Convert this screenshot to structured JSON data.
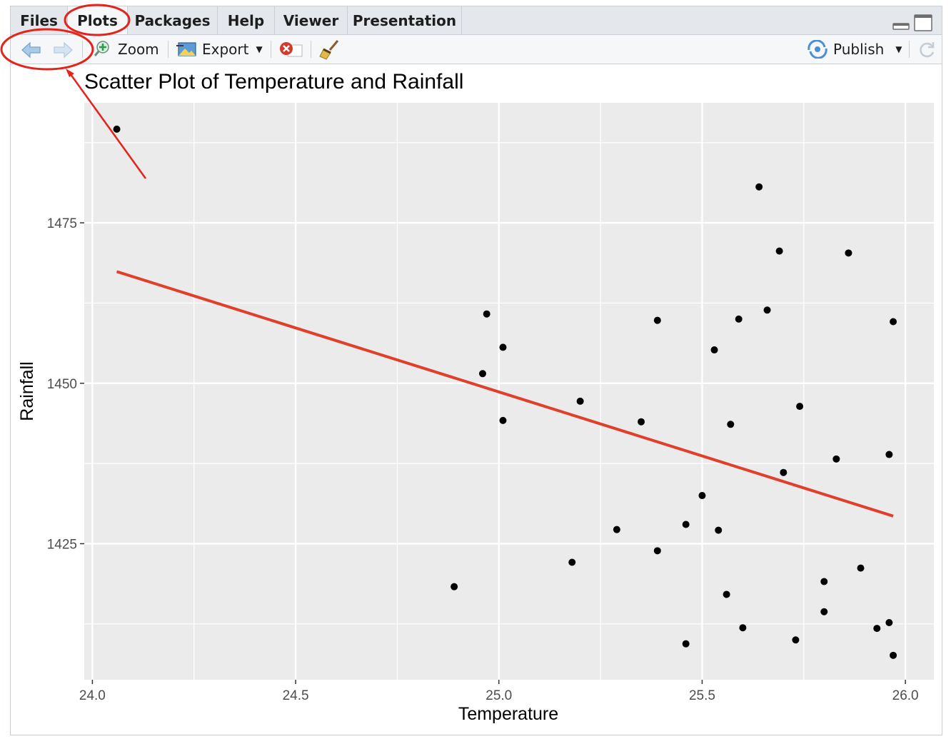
{
  "tabs": [
    {
      "label": "Files",
      "active": false
    },
    {
      "label": "Plots",
      "active": true
    },
    {
      "label": "Packages",
      "active": false
    },
    {
      "label": "Help",
      "active": false
    },
    {
      "label": "Viewer",
      "active": false
    },
    {
      "label": "Presentation",
      "active": false
    }
  ],
  "toolbar": {
    "zoom_label": "Zoom",
    "export_label": "Export",
    "publish_label": "Publish"
  },
  "colors": {
    "panel_bg": "#ebebeb",
    "grid": "#ffffff",
    "point": "#000000",
    "trend_line": "#e0402a",
    "annotation": "#e3241b"
  },
  "chart_data": {
    "type": "scatter",
    "title": "Scatter Plot of Temperature and Rainfall",
    "xlabel": "Temperature",
    "ylabel": "Rainfall",
    "xlim": [
      23.98,
      26.07
    ],
    "ylim": [
      1403.8,
      1493.7
    ],
    "x_ticks": [
      24.0,
      24.5,
      25.0,
      25.5,
      26.0
    ],
    "x_tick_labels": [
      "24.0",
      "24.5",
      "25.0",
      "25.5",
      "26.0"
    ],
    "y_ticks": [
      1425,
      1450,
      1475
    ],
    "y_tick_labels": [
      "1425",
      "1450",
      "1475"
    ],
    "grid": true,
    "points": [
      {
        "x": 24.06,
        "y": 1489.6
      },
      {
        "x": 24.89,
        "y": 1418.3
      },
      {
        "x": 24.96,
        "y": 1451.5
      },
      {
        "x": 24.97,
        "y": 1460.8
      },
      {
        "x": 25.01,
        "y": 1455.6
      },
      {
        "x": 25.01,
        "y": 1444.2
      },
      {
        "x": 25.18,
        "y": 1422.1
      },
      {
        "x": 25.2,
        "y": 1447.2
      },
      {
        "x": 25.29,
        "y": 1427.2
      },
      {
        "x": 25.35,
        "y": 1444.0
      },
      {
        "x": 25.39,
        "y": 1459.8
      },
      {
        "x": 25.39,
        "y": 1423.9
      },
      {
        "x": 25.46,
        "y": 1428.0
      },
      {
        "x": 25.46,
        "y": 1409.4
      },
      {
        "x": 25.5,
        "y": 1432.5
      },
      {
        "x": 25.53,
        "y": 1455.2
      },
      {
        "x": 25.54,
        "y": 1427.1
      },
      {
        "x": 25.56,
        "y": 1417.1
      },
      {
        "x": 25.57,
        "y": 1443.6
      },
      {
        "x": 25.59,
        "y": 1460.0
      },
      {
        "x": 25.6,
        "y": 1411.9
      },
      {
        "x": 25.64,
        "y": 1480.6
      },
      {
        "x": 25.66,
        "y": 1461.4
      },
      {
        "x": 25.69,
        "y": 1470.6
      },
      {
        "x": 25.7,
        "y": 1436.1
      },
      {
        "x": 25.73,
        "y": 1410.0
      },
      {
        "x": 25.74,
        "y": 1446.4
      },
      {
        "x": 25.8,
        "y": 1419.1
      },
      {
        "x": 25.8,
        "y": 1414.4
      },
      {
        "x": 25.83,
        "y": 1438.2
      },
      {
        "x": 25.86,
        "y": 1470.3
      },
      {
        "x": 25.89,
        "y": 1421.2
      },
      {
        "x": 25.93,
        "y": 1411.8
      },
      {
        "x": 25.96,
        "y": 1438.9
      },
      {
        "x": 25.96,
        "y": 1412.7
      },
      {
        "x": 25.97,
        "y": 1407.6
      },
      {
        "x": 25.97,
        "y": 1459.6
      }
    ],
    "trend_line": {
      "x": [
        24.06,
        25.97
      ],
      "y": [
        1467.4,
        1429.3
      ]
    }
  }
}
